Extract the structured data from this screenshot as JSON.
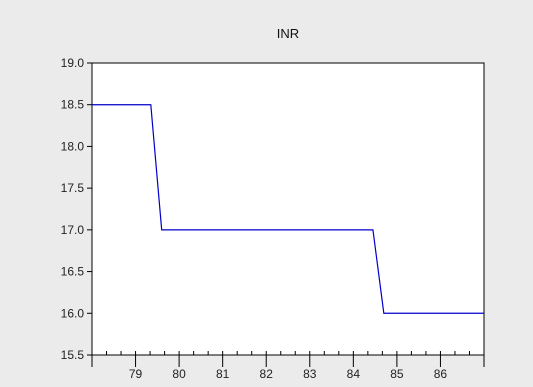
{
  "chart_data": {
    "type": "line",
    "title": "INR",
    "xlabel": "",
    "ylabel": "",
    "x_tick_labels": [
      "79",
      "80",
      "81",
      "82",
      "83",
      "84",
      "85",
      "86"
    ],
    "y_ticks": [
      15.5,
      16.0,
      16.5,
      17.0,
      17.5,
      18.0,
      18.5,
      19.0
    ],
    "y_tick_labels": [
      "15.5",
      "16.0",
      "16.5",
      "17.0",
      "17.5",
      "18.0",
      "18.5",
      "19.0"
    ],
    "xlim": [
      78.0,
      87.0
    ],
    "ylim": [
      15.5,
      19.0
    ],
    "grid": false,
    "legend": "none",
    "series": [
      {
        "x": [
          78.0,
          79.35,
          79.6,
          84.45,
          84.7,
          87.0
        ],
        "y": [
          18.5,
          18.5,
          17.0,
          17.0,
          16.0,
          16.0
        ]
      }
    ],
    "colors": {
      "background": "#ebebeb",
      "plot_area": "#ffffff",
      "line": "#0000cc",
      "axis": "#000000"
    }
  }
}
